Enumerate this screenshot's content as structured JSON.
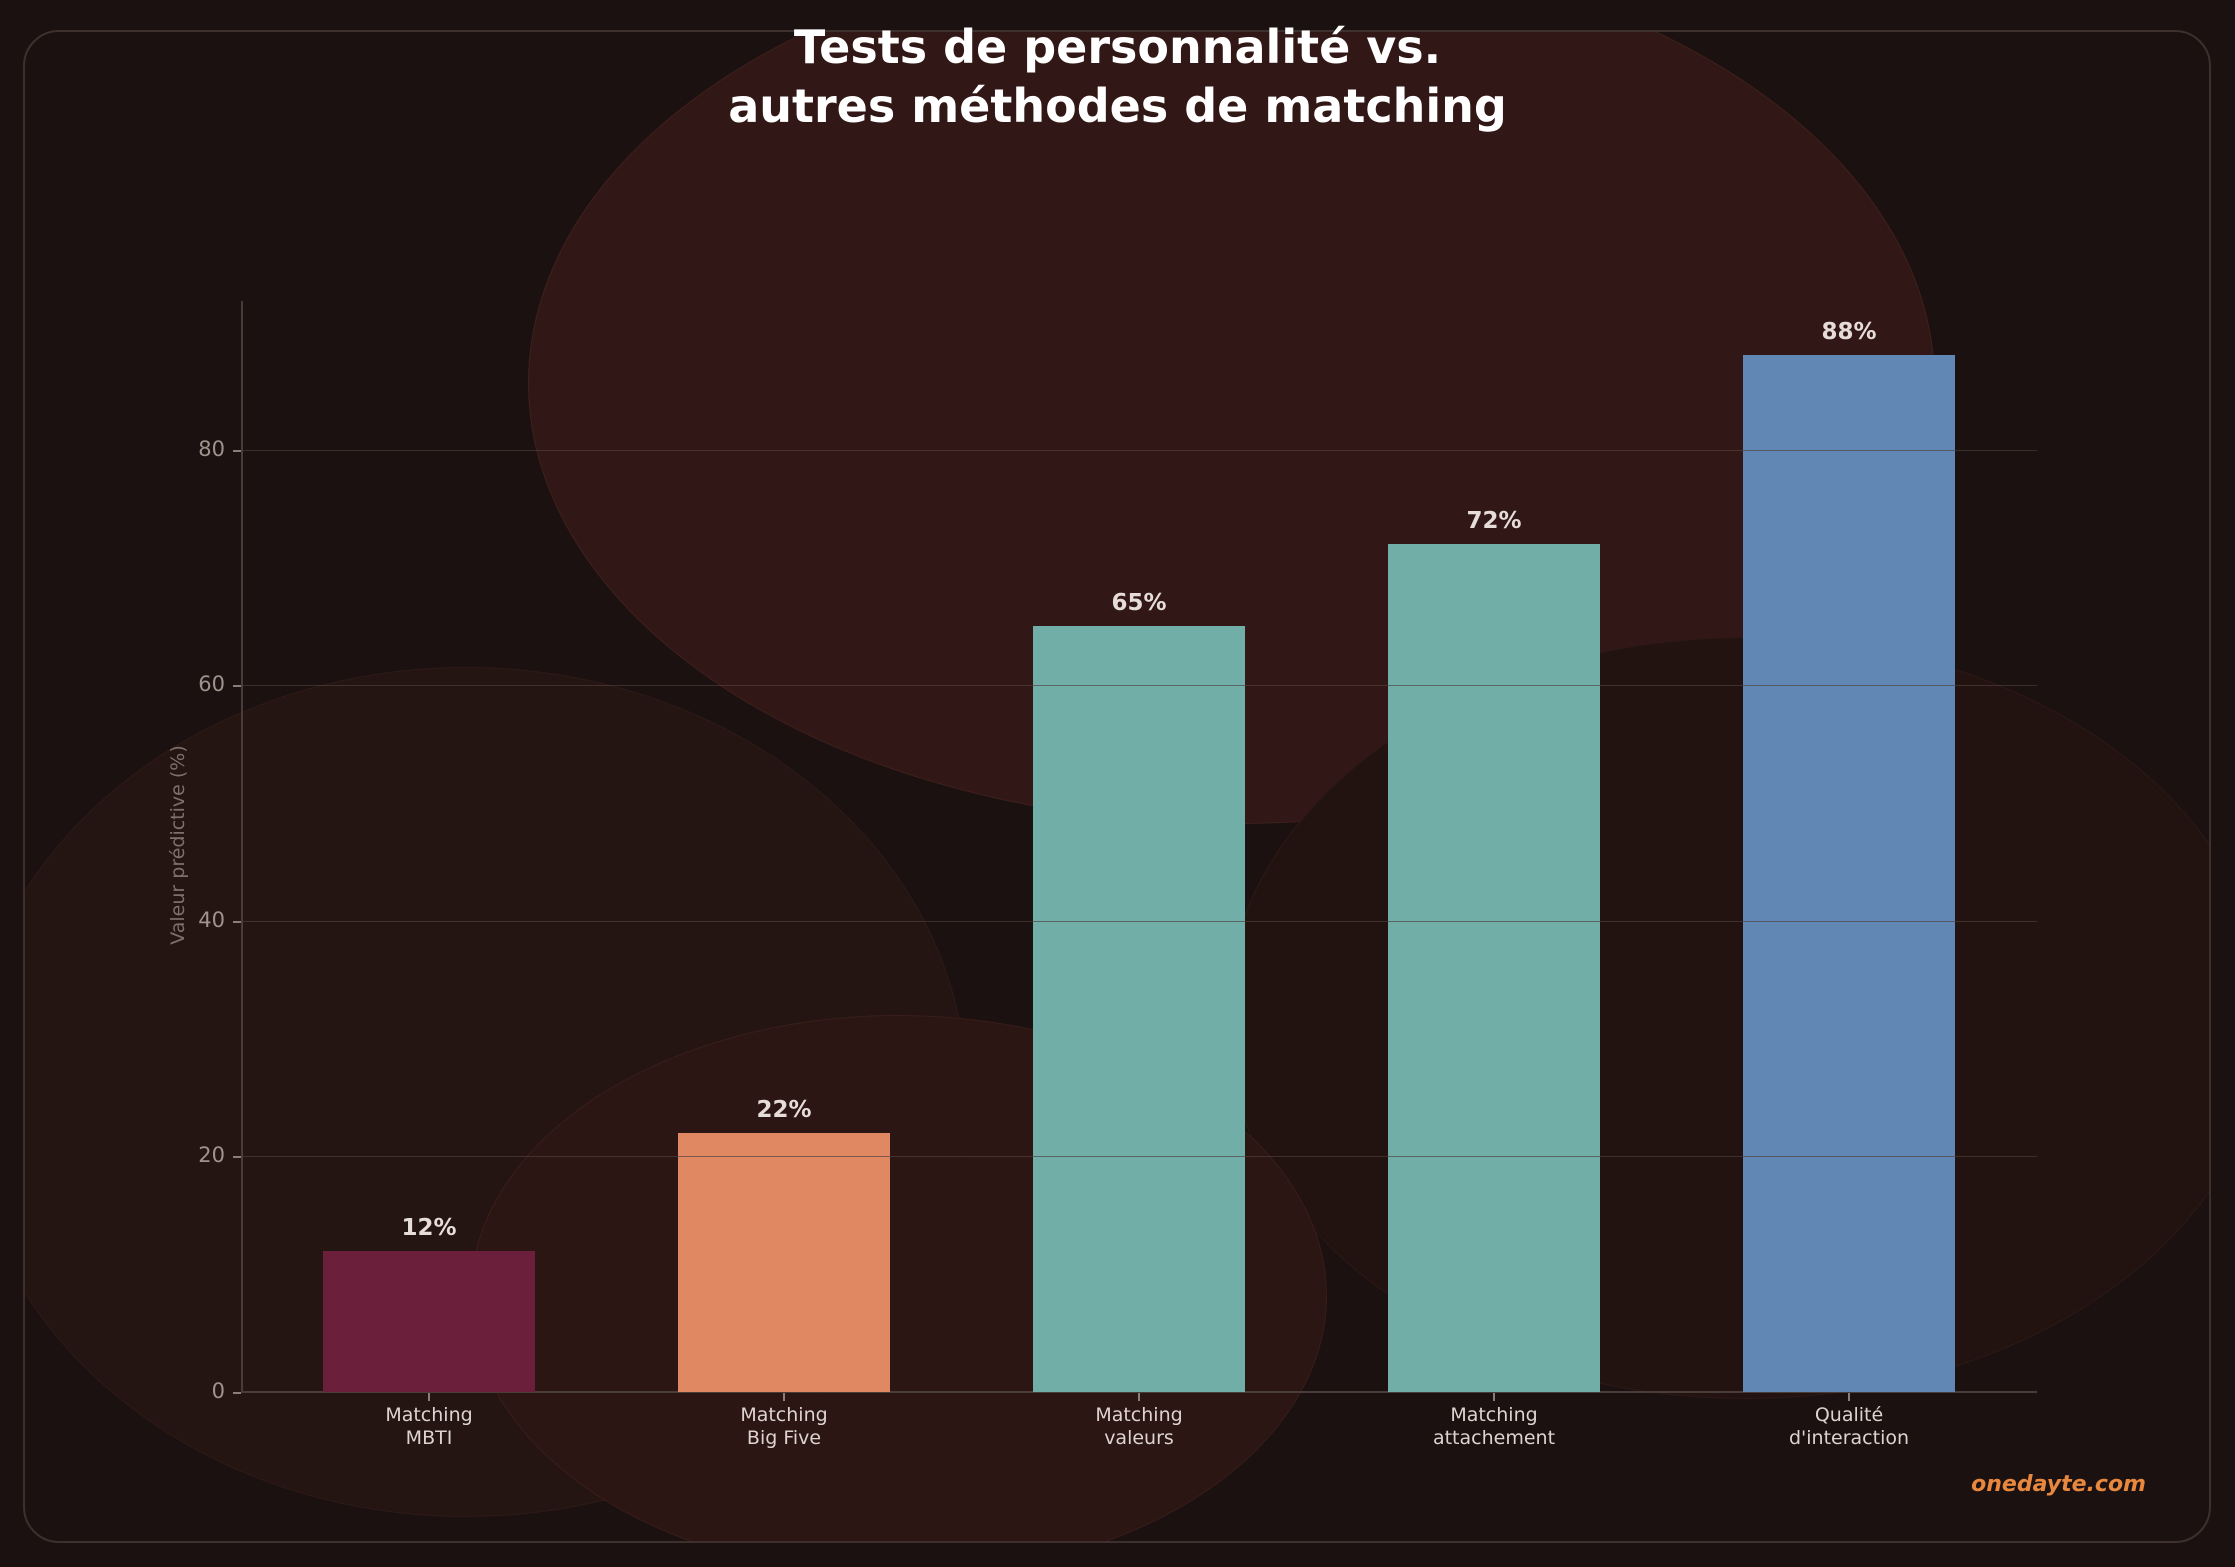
{
  "chart_data": {
    "type": "bar",
    "title": "Tests de personnalité vs. autres méthodes de matching",
    "title_lines": [
      "Tests de personnalité vs.",
      "autres méthodes de matching"
    ],
    "xlabel": "",
    "ylabel": "Valeur prédictive (%)",
    "ylim": [
      0,
      92
    ],
    "yticks": [
      0,
      20,
      40,
      60,
      80
    ],
    "grid": true,
    "legend": null,
    "categories": [
      "Matching MBTI",
      "Matching Big Five",
      "Matching valeurs",
      "Matching attachement",
      "Qualité d'interaction"
    ],
    "category_lines": [
      [
        "Matching",
        "MBTI"
      ],
      [
        "Matching",
        "Big Five"
      ],
      [
        "Matching",
        "valeurs"
      ],
      [
        "Matching",
        "attachement"
      ],
      [
        "Qualité",
        "d'interaction"
      ]
    ],
    "values": [
      12,
      22,
      65,
      72,
      88
    ],
    "value_labels": [
      "12%",
      "22%",
      "65%",
      "72%",
      "88%"
    ],
    "colors": [
      "#6c1f3a",
      "#e08862",
      "#71aea8",
      "#71aea8",
      "#6187b5"
    ]
  },
  "ytick_labels": [
    "0",
    "20",
    "40",
    "60",
    "80"
  ],
  "brand": "onedayte.com"
}
